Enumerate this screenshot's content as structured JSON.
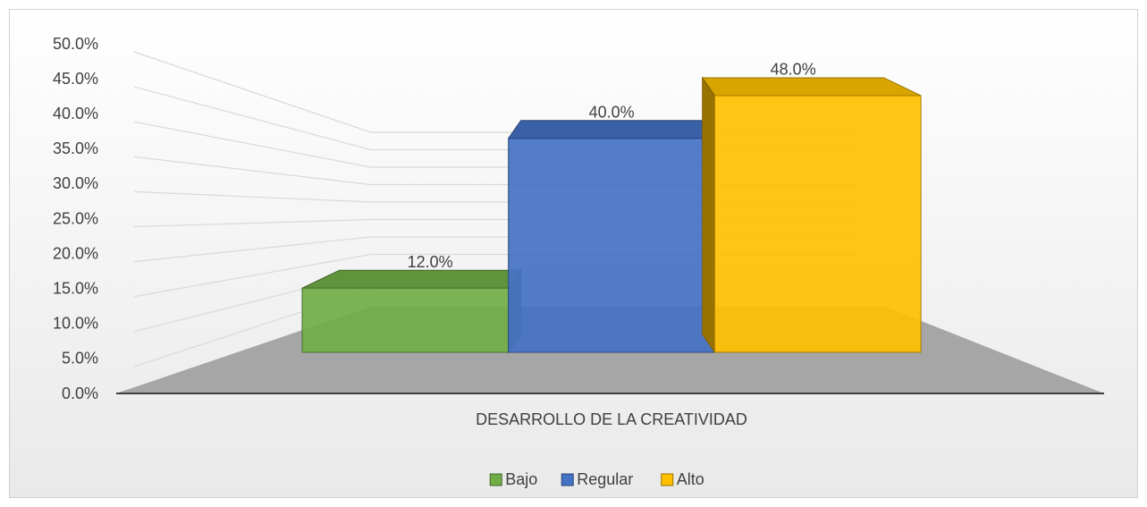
{
  "chart_data": {
    "type": "bar3d",
    "categories": [
      "DESARROLLO DE LA CREATIVIDAD"
    ],
    "series": [
      {
        "name": "Bajo",
        "color": "#70ad47",
        "values": [
          12
        ],
        "value_labels": [
          "12.0%"
        ]
      },
      {
        "name": "Regular",
        "color": "#4472c4",
        "values": [
          40
        ],
        "value_labels": [
          "40.0%"
        ]
      },
      {
        "name": "Alto",
        "color": "#ffc000",
        "values": [
          48
        ],
        "value_labels": [
          "48.0%"
        ]
      }
    ],
    "ylim": [
      0,
      50
    ],
    "yticks": [
      {
        "value": 0,
        "label": "0.0%"
      },
      {
        "value": 5,
        "label": "5.0%"
      },
      {
        "value": 10,
        "label": "10.0%"
      },
      {
        "value": 15,
        "label": "15.0%"
      },
      {
        "value": 20,
        "label": "20.0%"
      },
      {
        "value": 25,
        "label": "25.0%"
      },
      {
        "value": 30,
        "label": "30.0%"
      },
      {
        "value": 35,
        "label": "35.0%"
      },
      {
        "value": 40,
        "label": "40.0%"
      },
      {
        "value": 45,
        "label": "45.0%"
      },
      {
        "value": 50,
        "label": "50.0%"
      }
    ],
    "grid": true,
    "legend": "bottom"
  }
}
